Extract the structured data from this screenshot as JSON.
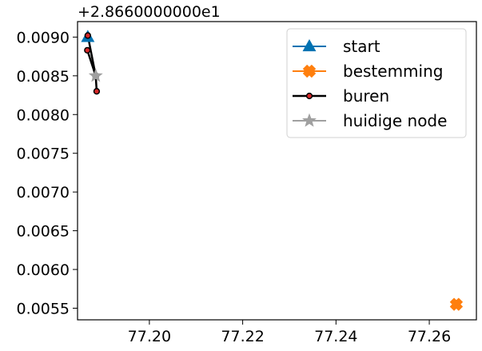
{
  "chart_data": {
    "type": "line",
    "title": "",
    "xlabel": "",
    "ylabel": "",
    "y_offset_text": "+2.8660000000e1",
    "xlim": [
      77.1846,
      77.2701
    ],
    "ylim": [
      0.00535,
      0.0092
    ],
    "x_ticks": [
      77.2,
      77.22,
      77.24,
      77.26
    ],
    "x_tick_labels": [
      "77.20",
      "77.22",
      "77.24",
      "77.26"
    ],
    "y_ticks": [
      0.0055,
      0.006,
      0.0065,
      0.007,
      0.0075,
      0.008,
      0.0085,
      0.009
    ],
    "y_tick_labels": [
      "0.0055",
      "0.0060",
      "0.0065",
      "0.0070",
      "0.0075",
      "0.0080",
      "0.0085",
      "0.0090"
    ],
    "grid": false,
    "legend_position": "top-right",
    "series": [
      {
        "name": "start",
        "marker": "triangle",
        "color": "#0072B2",
        "points": [
          [
            77.1868,
            0.009
          ]
        ]
      },
      {
        "name": "bestemming",
        "marker": "x",
        "color": "#FF7F0E",
        "points": [
          [
            77.2658,
            0.00555
          ]
        ]
      },
      {
        "name": "buren",
        "marker": "dot",
        "color": "#000000",
        "face": "#D62728",
        "segments": [
          [
            [
              77.1868,
              0.00902
            ],
            [
              77.1885,
              0.0085
            ]
          ],
          [
            [
              77.1867,
              0.00883
            ],
            [
              77.1885,
              0.0085
            ]
          ],
          [
            [
              77.1885,
              0.0085
            ],
            [
              77.1887,
              0.0083
            ]
          ]
        ]
      },
      {
        "name": "huidige node",
        "marker": "star",
        "color": "#A0A0A0",
        "points": [
          [
            77.1885,
            0.0085
          ]
        ]
      }
    ]
  }
}
